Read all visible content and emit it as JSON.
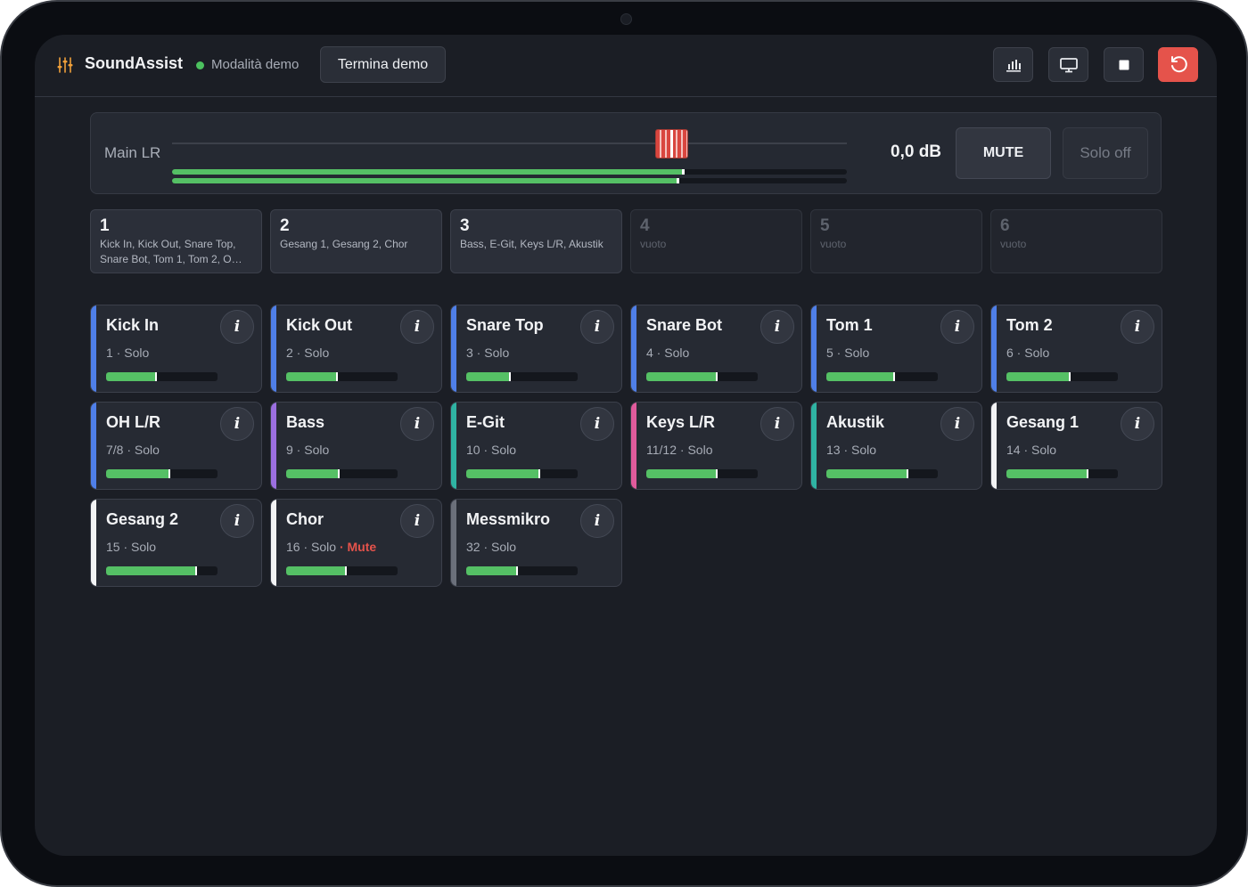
{
  "header": {
    "app_title": "SoundAssist",
    "status": "Modalità demo",
    "status_color": "#4cc15f",
    "end_demo_label": "Termina demo",
    "buttons": [
      {
        "icon": "bar-chart-icon"
      },
      {
        "icon": "monitor-icon"
      },
      {
        "icon": "stop-icon"
      },
      {
        "icon": "reset-icon",
        "color": "#e5534b"
      }
    ]
  },
  "main": {
    "label": "Main LR",
    "fader_position": 0.74,
    "db": "0,0 dB",
    "meter_left": 0.755,
    "meter_right": 0.748,
    "mute_label": "MUTE",
    "solo_label": "Solo off"
  },
  "groups": [
    {
      "num": "1",
      "members": "Kick In, Kick Out, Snare Top, Snare Bot, Tom 1, Tom 2, O…",
      "empty": false
    },
    {
      "num": "2",
      "members": "Gesang 1, Gesang 2, Chor",
      "empty": false
    },
    {
      "num": "3",
      "members": "Bass, E-Git, Keys L/R, Akustik",
      "empty": false
    },
    {
      "num": "4",
      "members": "vuoto",
      "empty": true
    },
    {
      "num": "5",
      "members": "vuoto",
      "empty": true
    },
    {
      "num": "6",
      "members": "vuoto",
      "empty": true
    }
  ],
  "channels": [
    {
      "name": "Kick In",
      "num": "1",
      "solo": "Solo",
      "mute": "",
      "color": "#4f7fe8",
      "level": 0.44
    },
    {
      "name": "Kick Out",
      "num": "2",
      "solo": "Solo",
      "mute": "",
      "color": "#4f7fe8",
      "level": 0.45
    },
    {
      "name": "Snare Top",
      "num": "3",
      "solo": "Solo",
      "mute": "",
      "color": "#4f7fe8",
      "level": 0.38
    },
    {
      "name": "Snare Bot",
      "num": "4",
      "solo": "Solo",
      "mute": "",
      "color": "#4f7fe8",
      "level": 0.62
    },
    {
      "name": "Tom 1",
      "num": "5",
      "solo": "Solo",
      "mute": "",
      "color": "#4f7fe8",
      "level": 0.6
    },
    {
      "name": "Tom 2",
      "num": "6",
      "solo": "Solo",
      "mute": "",
      "color": "#4f7fe8",
      "level": 0.56
    },
    {
      "name": "OH L/R",
      "num": "7/8",
      "solo": "Solo",
      "mute": "",
      "color": "#4f7fe8",
      "level": 0.56
    },
    {
      "name": "Bass",
      "num": "9",
      "solo": "Solo",
      "mute": "",
      "color": "#9b6fe0",
      "level": 0.46
    },
    {
      "name": "E-Git",
      "num": "10",
      "solo": "Solo",
      "mute": "",
      "color": "#2fb3a3",
      "level": 0.65
    },
    {
      "name": "Keys L/R",
      "num": "11/12",
      "solo": "Solo",
      "mute": "",
      "color": "#e05b9c",
      "level": 0.62
    },
    {
      "name": "Akustik",
      "num": "13",
      "solo": "Solo",
      "mute": "",
      "color": "#2fb3a3",
      "level": 0.72
    },
    {
      "name": "Gesang 1",
      "num": "14",
      "solo": "Solo",
      "mute": "",
      "color": "#f2f3f5",
      "level": 0.72
    },
    {
      "name": "Gesang 2",
      "num": "15",
      "solo": "Solo",
      "mute": "",
      "color": "#f2f3f5",
      "level": 0.8
    },
    {
      "name": "Chor",
      "num": "16",
      "solo": "Solo",
      "mute": "Mute",
      "color": "#f2f3f5",
      "level": 0.53
    },
    {
      "name": "Messmikro",
      "num": "32",
      "solo": "Solo",
      "mute": "",
      "color": "#6b707b",
      "level": 0.45
    }
  ]
}
